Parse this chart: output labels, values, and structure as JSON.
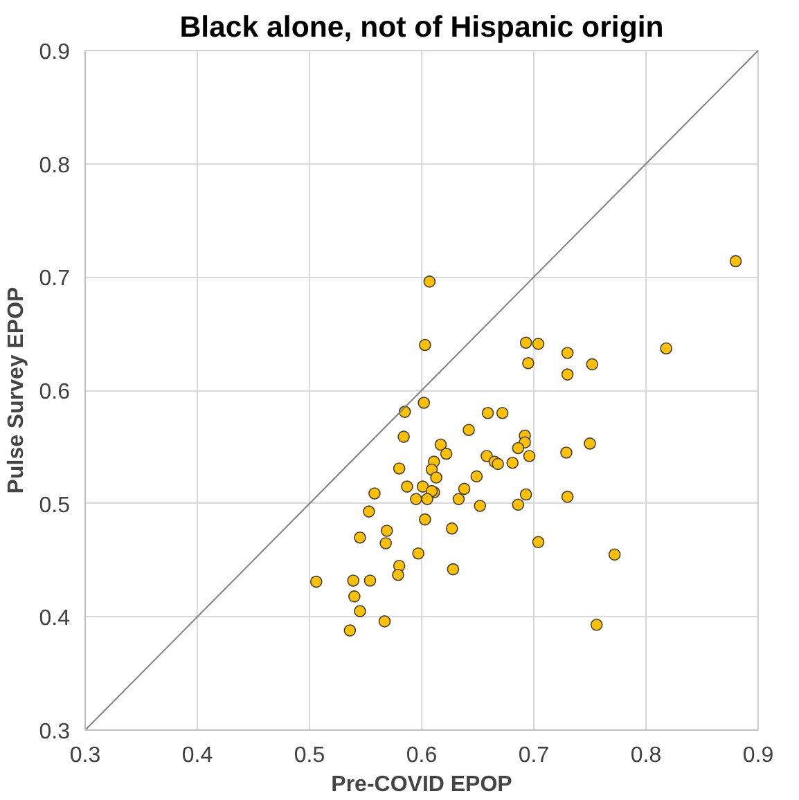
{
  "chart_data": {
    "type": "scatter",
    "title": "Black alone, not of Hispanic origin",
    "xlabel": "Pre-COVID EPOP",
    "ylabel": "Pulse Survey EPOP",
    "xlim": [
      0.3,
      0.9
    ],
    "ylim": [
      0.3,
      0.9
    ],
    "xticks": [
      {
        "value": 0.3,
        "label": "0.3"
      },
      {
        "value": 0.4,
        "label": "0.4"
      },
      {
        "value": 0.5,
        "label": "0.5"
      },
      {
        "value": 0.6,
        "label": "0.6"
      },
      {
        "value": 0.7,
        "label": "0.7"
      },
      {
        "value": 0.8,
        "label": "0.8"
      },
      {
        "value": 0.9,
        "label": "0.9"
      }
    ],
    "yticks": [
      {
        "value": 0.3,
        "label": "0.3"
      },
      {
        "value": 0.4,
        "label": "0.4"
      },
      {
        "value": 0.5,
        "label": "0.5"
      },
      {
        "value": 0.6,
        "label": "0.6"
      },
      {
        "value": 0.7,
        "label": "0.7"
      },
      {
        "value": 0.8,
        "label": "0.8"
      },
      {
        "value": 0.9,
        "label": "0.9"
      }
    ],
    "grid": true,
    "marker": "circle",
    "series": [
      {
        "color": "#ffc000",
        "x": [
          0.88,
          0.607,
          0.603,
          0.693,
          0.704,
          0.73,
          0.695,
          0.752,
          0.73,
          0.818,
          0.602,
          0.585,
          0.659,
          0.672,
          0.642,
          0.584,
          0.692,
          0.692,
          0.686,
          0.75,
          0.617,
          0.622,
          0.658,
          0.696,
          0.729,
          0.665,
          0.668,
          0.681,
          0.611,
          0.609,
          0.58,
          0.613,
          0.649,
          0.587,
          0.601,
          0.611,
          0.609,
          0.638,
          0.595,
          0.605,
          0.633,
          0.558,
          0.693,
          0.73,
          0.652,
          0.686,
          0.553,
          0.603,
          0.627,
          0.569,
          0.568,
          0.545,
          0.704,
          0.597,
          0.772,
          0.58,
          0.579,
          0.628,
          0.506,
          0.539,
          0.554,
          0.54,
          0.545,
          0.567,
          0.536,
          0.756
        ],
        "values": [
          0.714,
          0.696,
          0.64,
          0.642,
          0.641,
          0.633,
          0.624,
          0.623,
          0.614,
          0.637,
          0.589,
          0.581,
          0.58,
          0.58,
          0.565,
          0.559,
          0.56,
          0.554,
          0.549,
          0.553,
          0.552,
          0.544,
          0.542,
          0.542,
          0.545,
          0.537,
          0.535,
          0.536,
          0.537,
          0.53,
          0.531,
          0.523,
          0.524,
          0.515,
          0.515,
          0.51,
          0.511,
          0.513,
          0.504,
          0.504,
          0.504,
          0.509,
          0.508,
          0.506,
          0.498,
          0.499,
          0.493,
          0.486,
          0.478,
          0.476,
          0.465,
          0.47,
          0.466,
          0.456,
          0.455,
          0.445,
          0.437,
          0.442,
          0.431,
          0.432,
          0.432,
          0.418,
          0.405,
          0.396,
          0.388,
          0.393
        ]
      },
      {
        "type": "line",
        "color": "#808080",
        "marker": "none",
        "x": [
          0.3,
          0.9
        ],
        "values": [
          0.3,
          0.9
        ]
      }
    ]
  }
}
